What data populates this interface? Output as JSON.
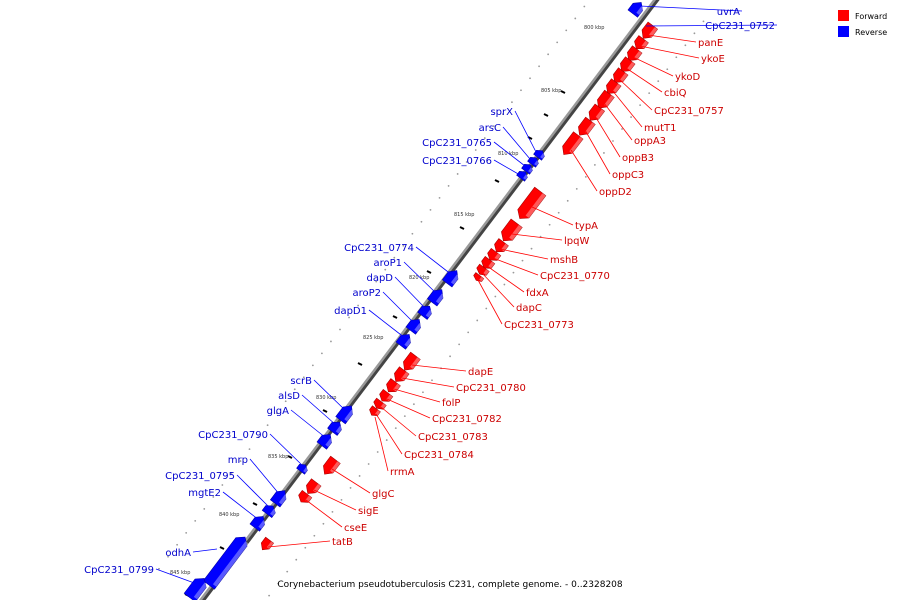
{
  "legend": {
    "forward_label": "Forward",
    "reverse_label": "Reverse",
    "forward_color": "#ff0000",
    "reverse_color": "#0000ff"
  },
  "caption": "Corynebacterium pseudotuberculosis C231, complete genome. - 0..2328208",
  "ticks": [
    "800 kbp",
    "805 kbp",
    "810 kbp",
    "815 kbp",
    "820 kbp",
    "825 kbp",
    "830 kbp",
    "835 kbp",
    "840 kbp",
    "845 kbp"
  ],
  "genes": {
    "forward": [
      "panE",
      "ykoE",
      "ykoD",
      "cbiQ",
      "CpC231_0757",
      "mutT1",
      "oppA3",
      "oppB3",
      "oppC3",
      "oppD2",
      "typA",
      "lpqW",
      "mshB",
      "CpC231_0770",
      "fdxA",
      "dapC",
      "CpC231_0773",
      "dapE",
      "CpC231_0780",
      "folP",
      "CpC231_0782",
      "CpC231_0783",
      "CpC231_0784",
      "rrmA",
      "glgC",
      "sigE",
      "cseE",
      "tatB"
    ],
    "reverse": [
      "uvrA",
      "CpC231_0752",
      "sprX",
      "arsC",
      "CpC231_0765",
      "CpC231_0766",
      "CpC231_0774",
      "aroP1",
      "dapD",
      "aroP2",
      "dapD1",
      "scrB",
      "alsD",
      "glgA",
      "CpC231_0790",
      "mrp",
      "CpC231_0795",
      "mgtE2",
      "odhA",
      "CpC231_0799"
    ]
  }
}
